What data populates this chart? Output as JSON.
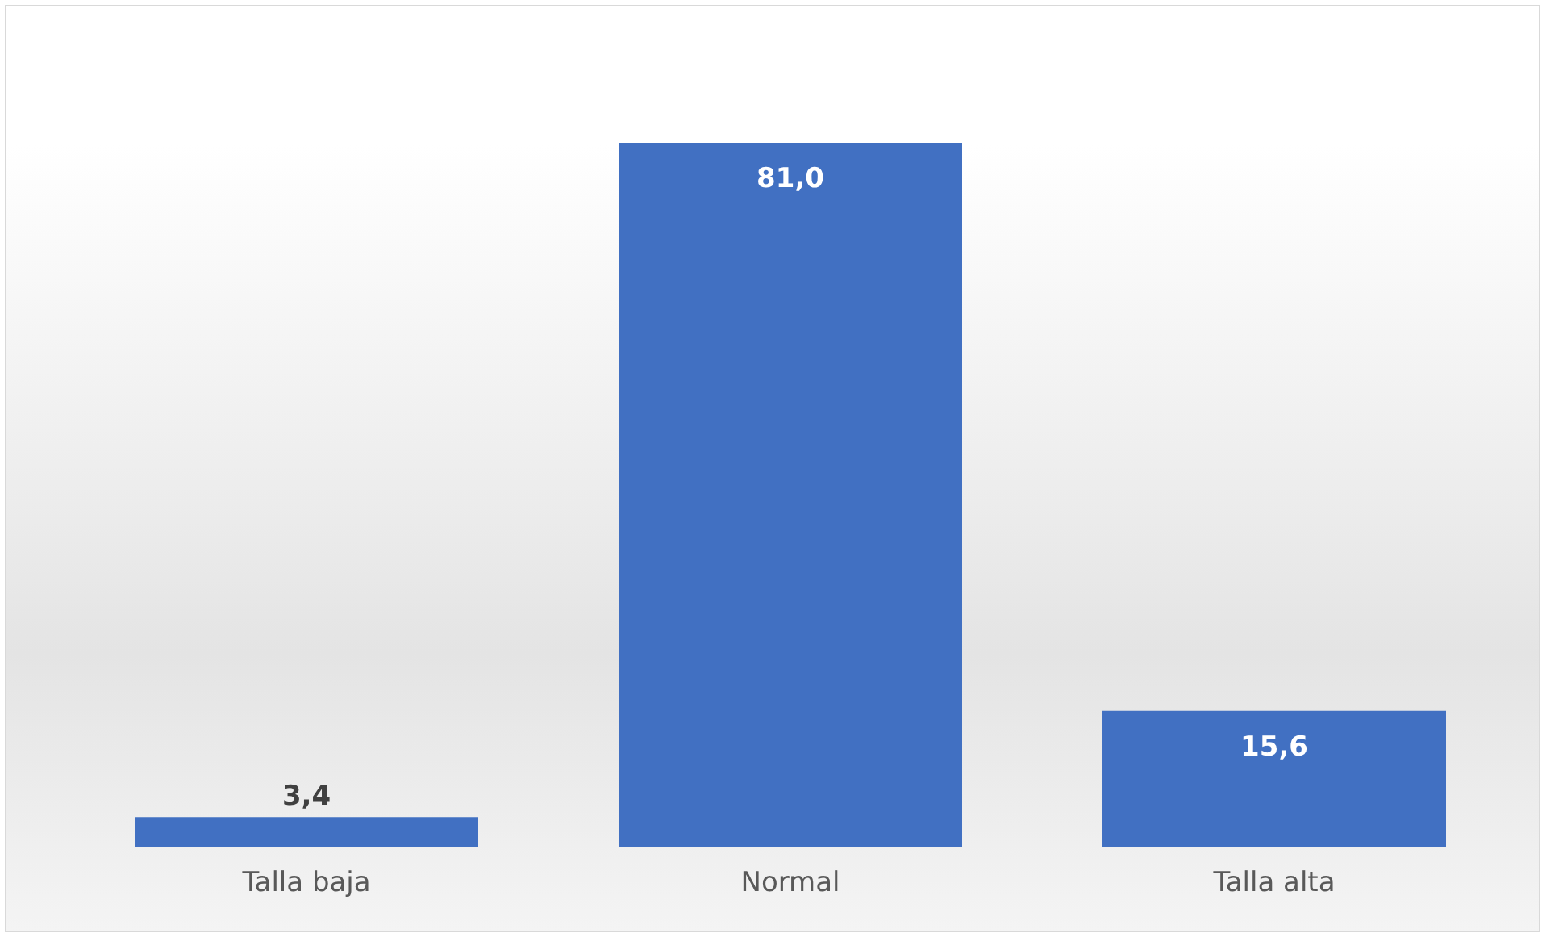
{
  "chart_data": {
    "type": "bar",
    "categories": [
      "Talla baja",
      "Normal",
      "Talla alta"
    ],
    "values": [
      3.4,
      81.0,
      15.6
    ],
    "color": "#4170c2",
    "value_labels": [
      "3,4",
      "81,0",
      "15,6"
    ]
  }
}
